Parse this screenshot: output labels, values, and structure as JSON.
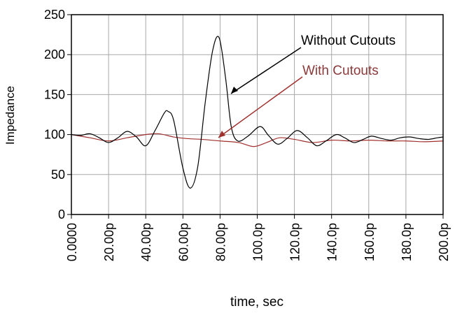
{
  "chart_data": {
    "type": "line",
    "x_label": "time, sec",
    "y_label": "Impedance",
    "xlim": [
      0,
      200
    ],
    "ylim": [
      0,
      250
    ],
    "xticks": [
      {
        "value": 0,
        "label": "0.0000"
      },
      {
        "value": 20,
        "label": "20.00p"
      },
      {
        "value": 40,
        "label": "40.00p"
      },
      {
        "value": 60,
        "label": "60.00p"
      },
      {
        "value": 80,
        "label": "80.00p"
      },
      {
        "value": 100,
        "label": "100.0p"
      },
      {
        "value": 120,
        "label": "120.0p"
      },
      {
        "value": 140,
        "label": "140.0p"
      },
      {
        "value": 160,
        "label": "160.0p"
      },
      {
        "value": 180,
        "label": "180.0p"
      },
      {
        "value": 200,
        "label": "200.0p"
      }
    ],
    "yticks": [
      0,
      50,
      100,
      150,
      200,
      250
    ],
    "grid": true,
    "annotations": [
      "Without Cutouts",
      "With Cutouts"
    ],
    "series": [
      {
        "name": "Without Cutouts",
        "color": "#000000",
        "x": [
          0,
          5,
          10,
          15,
          20,
          25,
          30,
          35,
          40,
          45,
          50,
          52,
          55,
          60,
          64,
          68,
          72,
          76,
          79.5,
          83,
          86,
          89.5,
          95,
          101.5,
          106,
          111,
          116,
          121.5,
          127,
          132,
          137,
          142.5,
          147,
          152,
          157,
          161.5,
          167,
          172,
          177,
          182,
          187,
          192,
          197,
          200
        ],
        "values": [
          100,
          99,
          101,
          96,
          90,
          96,
          104,
          97,
          86,
          105,
          127,
          129,
          118,
          58,
          33,
          60,
          140,
          205,
          221,
          170,
          110,
          92,
          98,
          110,
          99,
          88,
          95,
          105,
          96,
          86,
          92,
          100,
          96,
          90,
          94,
          98,
          95,
          93,
          96,
          97,
          95,
          94,
          96,
          97
        ]
      },
      {
        "name": "With Cutouts",
        "color": "#a0302e",
        "x": [
          0,
          10,
          20,
          30,
          40,
          47,
          55,
          62,
          70,
          80,
          90,
          98,
          105,
          112,
          120,
          130,
          140,
          150,
          160,
          170,
          180,
          190,
          200
        ],
        "values": [
          100,
          96,
          92,
          96,
          100,
          101,
          97,
          95,
          94,
          92,
          90,
          85,
          90,
          96,
          94,
          90,
          93,
          92,
          93,
          92,
          92,
          91,
          92
        ]
      }
    ]
  }
}
